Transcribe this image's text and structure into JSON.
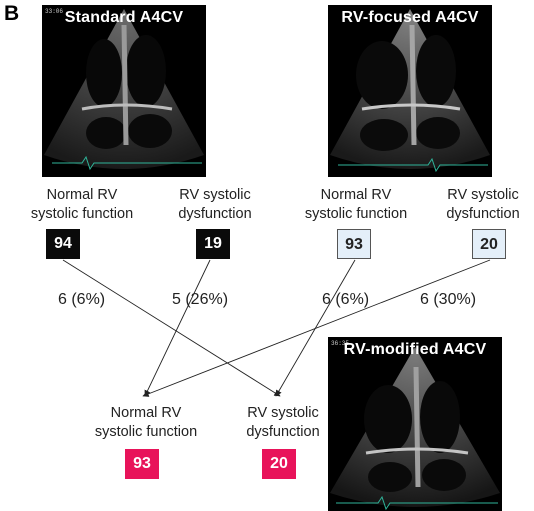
{
  "panel_letter": "B",
  "images": {
    "standard": {
      "title": "Standard A4CV",
      "stamp": "33:06"
    },
    "focused": {
      "title": "RV-focused A4CV"
    },
    "modified": {
      "title": "RV-modified A4CV",
      "stamp": "36:35"
    }
  },
  "standard": {
    "normal_label_1": "Normal RV",
    "normal_label_2": "systolic function",
    "dys_label_1": "RV systolic",
    "dys_label_2": "dysfunction",
    "normal_count": "94",
    "dys_count": "19"
  },
  "focused": {
    "normal_label_1": "Normal RV",
    "normal_label_2": "systolic function",
    "dys_label_1": "RV systolic",
    "dys_label_2": "dysfunction",
    "normal_count": "93",
    "dys_count": "20"
  },
  "modified": {
    "normal_label_1": "Normal RV",
    "normal_label_2": "systolic function",
    "dys_label_1": "RV systolic",
    "dys_label_2": "dysfunction",
    "normal_count": "93",
    "dys_count": "20"
  },
  "reclassification": {
    "std_normal_to_dys": "6 (6%)",
    "std_dys_to_normal": "5 (26%)",
    "foc_normal_to_dys": "6 (6%)",
    "foc_dys_to_normal": "6 (30%)"
  },
  "colors": {
    "standard_box": "#0a0a0a",
    "focused_box": "#e4eff9",
    "modified_box": "#e8135a"
  }
}
